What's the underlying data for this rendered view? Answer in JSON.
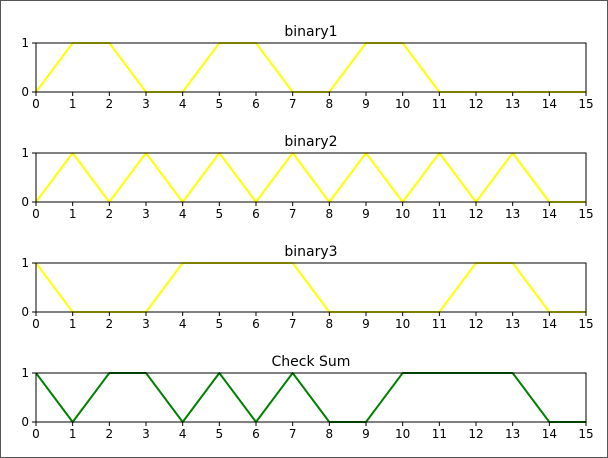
{
  "chart_data": [
    {
      "type": "line",
      "title": "binary1",
      "x": [
        0,
        1,
        2,
        3,
        4,
        5,
        6,
        7,
        8,
        9,
        10,
        11,
        12,
        13,
        14,
        15
      ],
      "series": [
        {
          "values": [
            0,
            1,
            1,
            0,
            0,
            1,
            1,
            0,
            0,
            1,
            1,
            0,
            0,
            0,
            0,
            0
          ],
          "color": "#ffff00"
        }
      ],
      "xlim": [
        0,
        15
      ],
      "ylim": [
        0,
        1
      ],
      "xticks": [
        "0",
        "1",
        "2",
        "3",
        "4",
        "5",
        "6",
        "7",
        "8",
        "9",
        "10",
        "11",
        "12",
        "13",
        "14",
        "15"
      ],
      "yticks": [
        "0",
        "1"
      ],
      "grid": false
    },
    {
      "type": "line",
      "title": "binary2",
      "x": [
        0,
        1,
        2,
        3,
        4,
        5,
        6,
        7,
        8,
        9,
        10,
        11,
        12,
        13,
        14,
        15
      ],
      "series": [
        {
          "values": [
            0,
            1,
            0,
            1,
            0,
            1,
            0,
            1,
            0,
            1,
            0,
            1,
            0,
            1,
            0,
            0
          ],
          "color": "#ffff00"
        }
      ],
      "xlim": [
        0,
        15
      ],
      "ylim": [
        0,
        1
      ],
      "xticks": [
        "0",
        "1",
        "2",
        "3",
        "4",
        "5",
        "6",
        "7",
        "8",
        "9",
        "10",
        "11",
        "12",
        "13",
        "14",
        "15"
      ],
      "yticks": [
        "0",
        "1"
      ],
      "grid": false
    },
    {
      "type": "line",
      "title": "binary3",
      "x": [
        0,
        1,
        2,
        3,
        4,
        5,
        6,
        7,
        8,
        9,
        10,
        11,
        12,
        13,
        14,
        15
      ],
      "series": [
        {
          "values": [
            1,
            0,
            0,
            0,
            1,
            1,
            1,
            1,
            0,
            0,
            0,
            0,
            1,
            1,
            0,
            0
          ],
          "color": "#ffff00"
        }
      ],
      "xlim": [
        0,
        15
      ],
      "ylim": [
        0,
        1
      ],
      "xticks": [
        "0",
        "1",
        "2",
        "3",
        "4",
        "5",
        "6",
        "7",
        "8",
        "9",
        "10",
        "11",
        "12",
        "13",
        "14",
        "15"
      ],
      "yticks": [
        "0",
        "1"
      ],
      "grid": false
    },
    {
      "type": "line",
      "title": "Check Sum",
      "x": [
        0,
        1,
        2,
        3,
        4,
        5,
        6,
        7,
        8,
        9,
        10,
        11,
        12,
        13,
        14,
        15
      ],
      "series": [
        {
          "values": [
            1,
            0,
            1,
            1,
            0,
            1,
            0,
            1,
            0,
            0,
            1,
            1,
            1,
            1,
            0,
            0
          ],
          "color": "#008000"
        }
      ],
      "xlim": [
        0,
        15
      ],
      "ylim": [
        0,
        1
      ],
      "xticks": [
        "0",
        "1",
        "2",
        "3",
        "4",
        "5",
        "6",
        "7",
        "8",
        "9",
        "10",
        "11",
        "12",
        "13",
        "14",
        "15"
      ],
      "yticks": [
        "0",
        "1"
      ],
      "grid": false
    }
  ]
}
